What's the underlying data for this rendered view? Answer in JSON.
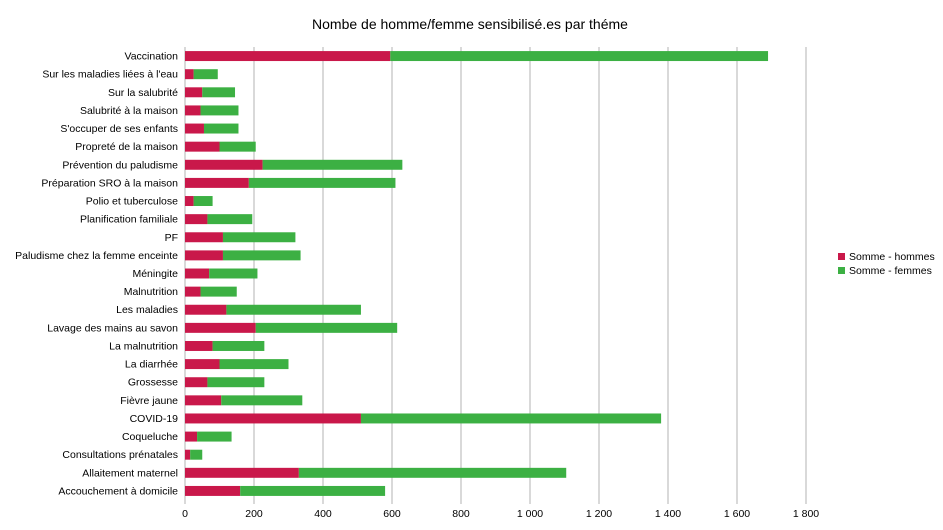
{
  "chart_data": {
    "type": "bar",
    "orientation": "horizontal",
    "stacked": true,
    "title": "Nombe de homme/femme sensibilisé.es par théme",
    "categories": [
      "Vaccination",
      "Sur les maladies liées à l'eau",
      "Sur la salubrité",
      "Salubrité à la maison",
      "S'occuper de ses enfants",
      "Propreté de la maison",
      "Prévention du paludisme",
      "Préparation SRO à la maison",
      "Polio et tuberculose",
      "Planification familiale",
      "PF",
      "Paludisme chez la femme enceinte",
      "Méningite",
      "Malnutrition",
      "Les maladies",
      "Lavage des mains au savon",
      "La malnutrition",
      "La diarrhée",
      "Grossesse",
      "Fièvre jaune",
      "COVID-19",
      "Coqueluche",
      "Consultations prénatales",
      "Allaitement maternel",
      "Accouchement à domicile"
    ],
    "series": [
      {
        "name": "Somme - hommes",
        "color": "#c9184a",
        "values": [
          595,
          25,
          50,
          45,
          55,
          100,
          225,
          185,
          25,
          65,
          110,
          110,
          70,
          45,
          120,
          205,
          80,
          100,
          65,
          105,
          510,
          35,
          15,
          330,
          160
        ]
      },
      {
        "name": "Somme - femmes",
        "color": "#3cb043",
        "values": [
          1095,
          70,
          95,
          110,
          100,
          105,
          405,
          425,
          55,
          130,
          210,
          225,
          140,
          105,
          390,
          410,
          150,
          200,
          165,
          235,
          870,
          100,
          35,
          775,
          420
        ]
      }
    ],
    "xlim": [
      0,
      1800
    ],
    "xticks": [
      0,
      200,
      400,
      600,
      800,
      1000,
      1200,
      1400,
      1600,
      1800
    ],
    "xtick_labels": [
      "0",
      "200",
      "400",
      "600",
      "800",
      "1 000",
      "1 200",
      "1 400",
      "1 600",
      "1 800"
    ],
    "grid": "vertical",
    "legend_position": "right"
  }
}
